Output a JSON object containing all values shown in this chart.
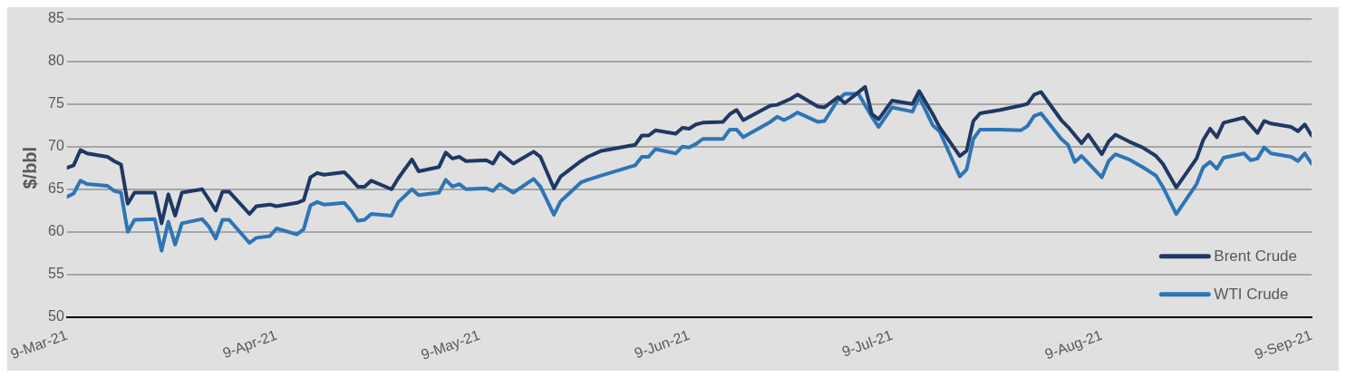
{
  "chart_data": {
    "type": "line",
    "ylabel": "$/bbl",
    "xlim": [
      "2021-03-09",
      "2021-09-09"
    ],
    "ylim": [
      50,
      85
    ],
    "yticks": [
      50,
      55,
      60,
      65,
      70,
      75,
      80,
      85
    ],
    "xticks": [
      {
        "value": "2021-03-09",
        "label": "9-Mar-21"
      },
      {
        "value": "2021-04-09",
        "label": "9-Apr-21"
      },
      {
        "value": "2021-05-09",
        "label": "9-May-21"
      },
      {
        "value": "2021-06-09",
        "label": "9-Jun-21"
      },
      {
        "value": "2021-07-09",
        "label": "9-Jul-21"
      },
      {
        "value": "2021-08-09",
        "label": "9-Aug-21"
      },
      {
        "value": "2021-09-09",
        "label": "9-Sep-21"
      }
    ],
    "grid": "y",
    "legend": "bottom right",
    "marker": "none",
    "line_style": "solid",
    "series": [
      {
        "name": "Brent Crude",
        "color": "#1f3864",
        "x": [
          "2021-03-09",
          "2021-03-10",
          "2021-03-11",
          "2021-03-12",
          "2021-03-15",
          "2021-03-16",
          "2021-03-17",
          "2021-03-18",
          "2021-03-19",
          "2021-03-22",
          "2021-03-23",
          "2021-03-24",
          "2021-03-25",
          "2021-03-26",
          "2021-03-29",
          "2021-03-30",
          "2021-03-31",
          "2021-04-01",
          "2021-04-02",
          "2021-04-05",
          "2021-04-06",
          "2021-04-08",
          "2021-04-09",
          "2021-04-12",
          "2021-04-13",
          "2021-04-14",
          "2021-04-15",
          "2021-04-16",
          "2021-04-19",
          "2021-04-20",
          "2021-04-21",
          "2021-04-22",
          "2021-04-23",
          "2021-04-26",
          "2021-04-27",
          "2021-04-29",
          "2021-04-30",
          "2021-05-03",
          "2021-05-04",
          "2021-05-05",
          "2021-05-06",
          "2021-05-07",
          "2021-05-10",
          "2021-05-11",
          "2021-05-12",
          "2021-05-14",
          "2021-05-17",
          "2021-05-18",
          "2021-05-20",
          "2021-05-21",
          "2021-05-24",
          "2021-05-25",
          "2021-05-27",
          "2021-06-01",
          "2021-06-02",
          "2021-06-03",
          "2021-06-04",
          "2021-06-07",
          "2021-06-08",
          "2021-06-09",
          "2021-06-10",
          "2021-06-11",
          "2021-06-14",
          "2021-06-15",
          "2021-06-16",
          "2021-06-17",
          "2021-06-21",
          "2021-06-22",
          "2021-06-24",
          "2021-06-25",
          "2021-06-28",
          "2021-06-29",
          "2021-07-01",
          "2021-07-02",
          "2021-07-05",
          "2021-07-06",
          "2021-07-07",
          "2021-07-09",
          "2021-07-12",
          "2021-07-13",
          "2021-07-15",
          "2021-07-16",
          "2021-07-19",
          "2021-07-20",
          "2021-07-21",
          "2021-07-22",
          "2021-07-25",
          "2021-07-28",
          "2021-07-29",
          "2021-07-30",
          "2021-07-31",
          "2021-08-03",
          "2021-08-04",
          "2021-08-06",
          "2021-08-07",
          "2021-08-09",
          "2021-08-10",
          "2021-08-11",
          "2021-08-13",
          "2021-08-15",
          "2021-08-17",
          "2021-08-18",
          "2021-08-20",
          "2021-08-23",
          "2021-08-24",
          "2021-08-25",
          "2021-08-26",
          "2021-08-27",
          "2021-08-30",
          "2021-08-31",
          "2021-09-01",
          "2021-09-02",
          "2021-09-03",
          "2021-09-06",
          "2021-09-07",
          "2021-09-08",
          "2021-09-09"
        ],
        "values": [
          67.5,
          67.8,
          69.6,
          69.2,
          68.8,
          68.3,
          67.9,
          63.3,
          64.6,
          64.6,
          61.0,
          64.4,
          61.9,
          64.6,
          65.0,
          63.8,
          62.5,
          64.7,
          64.7,
          62.1,
          63.0,
          63.2,
          63.0,
          63.4,
          63.7,
          66.4,
          66.9,
          66.7,
          67.0,
          66.2,
          65.3,
          65.3,
          66.0,
          65.0,
          66.3,
          68.5,
          67.1,
          67.6,
          69.3,
          68.6,
          68.8,
          68.3,
          68.4,
          68.0,
          69.3,
          68.0,
          69.4,
          68.8,
          65.1,
          66.5,
          68.3,
          68.8,
          69.5,
          70.2,
          71.3,
          71.3,
          71.9,
          71.5,
          72.2,
          72.1,
          72.6,
          72.8,
          72.9,
          73.8,
          74.3,
          73.1,
          74.8,
          74.9,
          75.6,
          76.1,
          74.7,
          74.6,
          75.8,
          75.1,
          77.0,
          73.8,
          73.2,
          75.4,
          75.0,
          76.5,
          73.8,
          72.3,
          68.9,
          69.5,
          73.0,
          73.9,
          74.3,
          74.8,
          75.0,
          76.1,
          76.4,
          73.1,
          72.3,
          70.4,
          71.4,
          69.1,
          70.6,
          71.4,
          70.6,
          69.9,
          68.9,
          68.0,
          65.2,
          68.6,
          70.8,
          72.1,
          71.1,
          72.8,
          73.4,
          72.5,
          71.6,
          73.0,
          72.7,
          72.3,
          71.8,
          72.6,
          71.3
        ]
      },
      {
        "name": "WTI Crude",
        "color": "#2e75b6",
        "x": [
          "2021-03-09",
          "2021-03-10",
          "2021-03-11",
          "2021-03-12",
          "2021-03-15",
          "2021-03-16",
          "2021-03-17",
          "2021-03-18",
          "2021-03-19",
          "2021-03-22",
          "2021-03-23",
          "2021-03-24",
          "2021-03-25",
          "2021-03-26",
          "2021-03-29",
          "2021-03-30",
          "2021-03-31",
          "2021-04-01",
          "2021-04-02",
          "2021-04-05",
          "2021-04-06",
          "2021-04-08",
          "2021-04-09",
          "2021-04-12",
          "2021-04-13",
          "2021-04-14",
          "2021-04-15",
          "2021-04-16",
          "2021-04-19",
          "2021-04-20",
          "2021-04-21",
          "2021-04-22",
          "2021-04-23",
          "2021-04-26",
          "2021-04-27",
          "2021-04-29",
          "2021-04-30",
          "2021-05-03",
          "2021-05-04",
          "2021-05-05",
          "2021-05-06",
          "2021-05-07",
          "2021-05-10",
          "2021-05-11",
          "2021-05-12",
          "2021-05-14",
          "2021-05-17",
          "2021-05-18",
          "2021-05-20",
          "2021-05-21",
          "2021-05-24",
          "2021-05-25",
          "2021-05-27",
          "2021-06-01",
          "2021-06-02",
          "2021-06-03",
          "2021-06-04",
          "2021-06-07",
          "2021-06-08",
          "2021-06-09",
          "2021-06-10",
          "2021-06-11",
          "2021-06-14",
          "2021-06-15",
          "2021-06-16",
          "2021-06-17",
          "2021-06-21",
          "2021-06-22",
          "2021-06-23",
          "2021-06-24",
          "2021-06-25",
          "2021-06-28",
          "2021-06-29",
          "2021-07-01",
          "2021-07-02",
          "2021-07-04",
          "2021-07-06",
          "2021-07-07",
          "2021-07-09",
          "2021-07-12",
          "2021-07-13",
          "2021-07-15",
          "2021-07-16",
          "2021-07-19",
          "2021-07-20",
          "2021-07-21",
          "2021-07-22",
          "2021-07-25",
          "2021-07-28",
          "2021-07-29",
          "2021-07-30",
          "2021-07-31",
          "2021-08-03",
          "2021-08-04",
          "2021-08-05",
          "2021-08-06",
          "2021-08-09",
          "2021-08-10",
          "2021-08-11",
          "2021-08-13",
          "2021-08-15",
          "2021-08-17",
          "2021-08-18",
          "2021-08-20",
          "2021-08-23",
          "2021-08-24",
          "2021-08-25",
          "2021-08-26",
          "2021-08-27",
          "2021-08-30",
          "2021-08-31",
          "2021-09-01",
          "2021-09-02",
          "2021-09-03",
          "2021-09-06",
          "2021-09-07",
          "2021-09-08",
          "2021-09-09"
        ],
        "values": [
          64.1,
          64.5,
          66.0,
          65.6,
          65.4,
          64.8,
          64.6,
          60.0,
          61.4,
          61.5,
          57.8,
          61.2,
          58.5,
          61.0,
          61.5,
          60.6,
          59.2,
          61.4,
          61.4,
          58.7,
          59.3,
          59.5,
          60.4,
          59.7,
          60.3,
          63.1,
          63.5,
          63.2,
          63.4,
          62.5,
          61.3,
          61.4,
          62.1,
          61.9,
          63.5,
          65.0,
          64.3,
          64.6,
          66.1,
          65.3,
          65.6,
          65.0,
          65.1,
          64.8,
          65.6,
          64.6,
          66.2,
          65.3,
          62.0,
          63.6,
          65.8,
          66.1,
          66.6,
          67.8,
          68.8,
          68.8,
          69.7,
          69.2,
          70.0,
          69.9,
          70.3,
          70.9,
          70.9,
          72.0,
          72.0,
          71.1,
          72.9,
          73.5,
          73.1,
          73.5,
          74.0,
          72.9,
          73.0,
          75.5,
          76.2,
          76.2,
          73.5,
          72.3,
          74.6,
          74.1,
          75.8,
          72.5,
          71.8,
          66.5,
          67.3,
          70.9,
          72.0,
          72.0,
          71.9,
          72.4,
          73.6,
          73.9,
          70.9,
          70.2,
          68.2,
          68.9,
          66.4,
          68.3,
          69.1,
          68.5,
          67.6,
          66.6,
          65.3,
          62.1,
          65.6,
          67.6,
          68.2,
          67.4,
          68.7,
          69.2,
          68.4,
          68.6,
          69.9,
          69.2,
          68.8,
          68.3,
          69.2,
          68.0
        ]
      }
    ]
  }
}
